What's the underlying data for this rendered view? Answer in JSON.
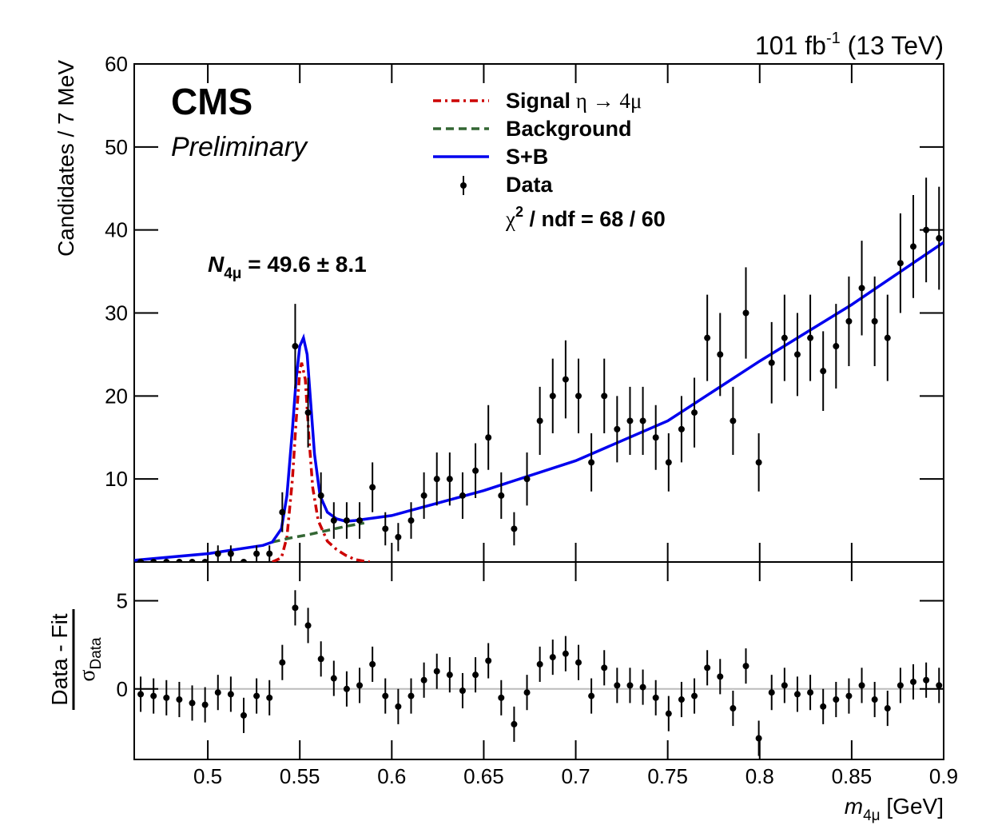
{
  "chart_data": [
    {
      "type": "scatter",
      "lumi": {
        "text": "101 fb",
        "sup": "-1",
        "rest": " (13 TeV)"
      },
      "experiment": "CMS",
      "status": "Preliminary",
      "annotation": {
        "symbol": "N",
        "sub": "4μ",
        "rest": " = 49.6 ± 8.1"
      },
      "fit_quality": {
        "symbol": "χ",
        "sup": "2",
        "rest": " / ndf = 68 / 60"
      },
      "ylabel": "Candidates / 7 MeV",
      "ylim": [
        0,
        60
      ],
      "yticks": [
        10,
        20,
        30,
        40,
        50,
        60
      ],
      "x": [
        0.4635,
        0.4705,
        0.4775,
        0.4845,
        0.4915,
        0.4985,
        0.5055,
        0.5125,
        0.5195,
        0.5265,
        0.5335,
        0.5405,
        0.5475,
        0.5545,
        0.5615,
        0.5685,
        0.5755,
        0.5825,
        0.5895,
        0.5965,
        0.6035,
        0.6105,
        0.6175,
        0.6245,
        0.6315,
        0.6385,
        0.6455,
        0.6525,
        0.6595,
        0.6665,
        0.6735,
        0.6805,
        0.6875,
        0.6945,
        0.7015,
        0.7085,
        0.7155,
        0.7225,
        0.7295,
        0.7365,
        0.7435,
        0.7505,
        0.7575,
        0.7645,
        0.7715,
        0.7785,
        0.7855,
        0.7925,
        0.7995,
        0.8065,
        0.8135,
        0.8205,
        0.8275,
        0.8345,
        0.8415,
        0.8485,
        0.8555,
        0.8625,
        0.8695,
        0.8765,
        0.8835,
        0.8905,
        0.8975
      ],
      "series": [
        {
          "name": "Data",
          "color": "#000000",
          "values": [
            0,
            0,
            0,
            0,
            0,
            0,
            1,
            1,
            0,
            1,
            1,
            6,
            26,
            18,
            8,
            5,
            5,
            5,
            9,
            4,
            3,
            5,
            8,
            10,
            10,
            8,
            11,
            15,
            8,
            4,
            10,
            17,
            20,
            22,
            20,
            12,
            20,
            16,
            17,
            17,
            15,
            12,
            16,
            18,
            27,
            25,
            17,
            30,
            12,
            24,
            27,
            25,
            27,
            23,
            26,
            29,
            33,
            29,
            27,
            36,
            38,
            40,
            39
          ],
          "errors": [
            0,
            0,
            0,
            0,
            0,
            0,
            1,
            1,
            0,
            1,
            1,
            2.4,
            5.1,
            4.2,
            2.8,
            2.2,
            2.2,
            2.2,
            3,
            2,
            1.7,
            2.2,
            2.8,
            3.2,
            3.2,
            2.8,
            3.3,
            3.9,
            2.8,
            2,
            3.2,
            4.1,
            4.5,
            4.7,
            4.5,
            3.5,
            4.5,
            4,
            4.1,
            4.1,
            3.9,
            3.5,
            4,
            4.2,
            5.2,
            5,
            4.1,
            5.5,
            3.5,
            4.9,
            5.2,
            5,
            5.2,
            4.8,
            5.1,
            5.4,
            5.7,
            5.4,
            5.2,
            6,
            6.2,
            6.3,
            6.2
          ]
        }
      ],
      "curves": [
        {
          "name": "Signal",
          "name_rest": " η → 4μ",
          "color": "#cc0000",
          "dash": "dashdot",
          "x": [
            0.535,
            0.54,
            0.543,
            0.546,
            0.548,
            0.55,
            0.551,
            0.553,
            0.555,
            0.557,
            0.56,
            0.565,
            0.57,
            0.575,
            0.58,
            0.585,
            0.588
          ],
          "y": [
            0,
            0.5,
            3,
            10,
            17,
            23,
            24,
            22,
            15,
            9,
            5,
            2.5,
            1.5,
            0.8,
            0.3,
            0.1,
            0
          ]
        },
        {
          "name": "Background",
          "color": "#336633",
          "dash": "dashed",
          "x": [
            0.535,
            0.545,
            0.555,
            0.565,
            0.575,
            0.585
          ],
          "y": [
            2.4,
            2.9,
            3.3,
            3.8,
            4.3,
            4.7
          ]
        },
        {
          "name": "S+B",
          "color": "#0000ee",
          "dash": "solid",
          "x": [
            0.46,
            0.5,
            0.53,
            0.535,
            0.54,
            0.543,
            0.546,
            0.548,
            0.55,
            0.552,
            0.554,
            0.556,
            0.558,
            0.561,
            0.565,
            0.57,
            0.575,
            0.58,
            0.6,
            0.65,
            0.7,
            0.75,
            0.8,
            0.85,
            0.9
          ],
          "y": [
            0.2,
            1,
            2,
            2.4,
            4,
            8,
            16,
            22,
            26,
            27,
            25,
            19,
            13,
            8,
            6,
            5.2,
            4.9,
            5,
            5.6,
            8.6,
            12.2,
            17,
            24.2,
            31,
            38.5
          ]
        }
      ]
    },
    {
      "type": "scatter",
      "ylabel": {
        "numerator": "Data - Fit",
        "denominator": "σ",
        "sub": "Data"
      },
      "xlabel": {
        "symbol": "m",
        "sub": "4μ",
        "rest": " [GeV]"
      },
      "xlim": [
        0.46,
        0.9
      ],
      "xticks": [
        0.5,
        0.55,
        0.6,
        0.65,
        0.7,
        0.75,
        0.8,
        0.85,
        0.9
      ],
      "ylim": [
        -4,
        7.2
      ],
      "yticks": [
        0,
        5
      ],
      "series": [
        {
          "color": "#000000",
          "values": [
            -0.3,
            -0.4,
            -0.5,
            -0.6,
            -0.8,
            -0.9,
            -0.2,
            -0.3,
            -1.5,
            -0.4,
            -0.5,
            1.5,
            4.6,
            3.6,
            1.7,
            0.6,
            0,
            0.2,
            1.4,
            -0.4,
            -1,
            -0.4,
            0.5,
            1,
            0.8,
            -0.1,
            0.8,
            1.6,
            -0.5,
            -2,
            -0.2,
            1.4,
            1.8,
            2,
            1.5,
            -0.4,
            1.2,
            0.2,
            0.2,
            0.1,
            -0.5,
            -1.4,
            -0.6,
            -0.4,
            1.2,
            0.7,
            -1.1,
            1.3,
            -2.8,
            -0.2,
            0.2,
            -0.3,
            -0.2,
            -1,
            -0.6,
            -0.4,
            0.2,
            -0.6,
            -1.1,
            0.2,
            0.4,
            0.5,
            0.2
          ],
          "errors": [
            1,
            1,
            1,
            1,
            1,
            1,
            1,
            1,
            1,
            1,
            1,
            1,
            1,
            1,
            1,
            1,
            1,
            1,
            1,
            1,
            1,
            1,
            1,
            1,
            1,
            1,
            1,
            1,
            1,
            1,
            1,
            1,
            1,
            1,
            1,
            1,
            1,
            1,
            1,
            1,
            1,
            1,
            1,
            1,
            1,
            1,
            1,
            1,
            1,
            1,
            1,
            1,
            1,
            1,
            1,
            1,
            1,
            1,
            1,
            1,
            1,
            1,
            1
          ]
        }
      ]
    }
  ]
}
